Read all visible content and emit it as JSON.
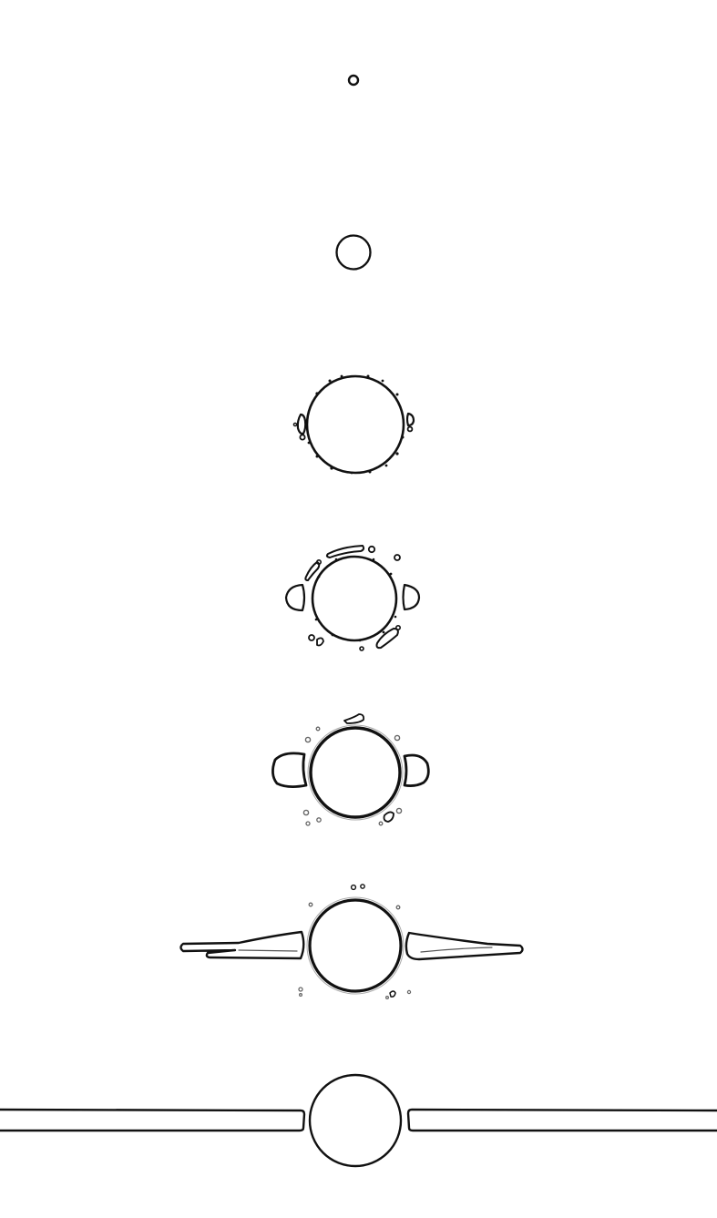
{
  "diagram": {
    "kind": "sequence of line drawings (no visible text)",
    "stage_count": 7,
    "colors": {
      "background": "#ffffff",
      "line": "#111111",
      "soft_line": "#666666",
      "fill_highlight": "#e6e6e6"
    }
  }
}
